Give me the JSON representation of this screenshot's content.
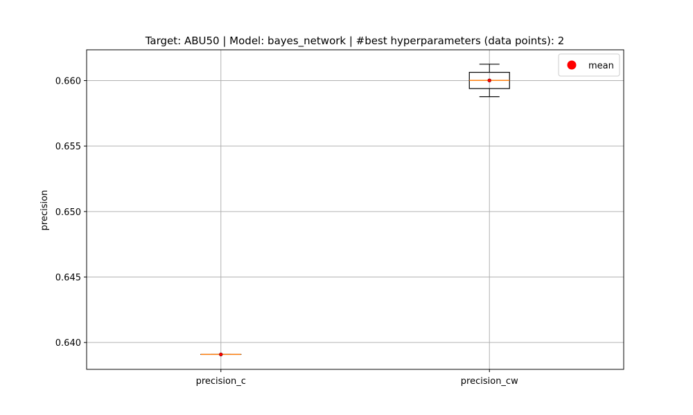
{
  "chart_data": {
    "type": "box",
    "title": "Target: ABU50 | Model: bayes_network | #best hyperparameters (data points): 2",
    "xlabel": "",
    "ylabel": "precision",
    "ylim": [
      0.63795,
      0.66235
    ],
    "yticks": [
      0.64,
      0.645,
      0.65,
      0.655,
      0.66
    ],
    "ytick_labels": [
      "0.640",
      "0.645",
      "0.650",
      "0.655",
      "0.660"
    ],
    "grid": true,
    "legend": {
      "position": "top-right",
      "entries": [
        {
          "label": "mean",
          "color": "#ff0000",
          "marker": "circle"
        }
      ]
    },
    "categories": [
      "precision_c",
      "precision_cw"
    ],
    "boxes": [
      {
        "name": "precision_c",
        "whisker_low": 0.63909,
        "q1": 0.63909,
        "median": 0.63909,
        "q3": 0.63909,
        "whisker_high": 0.63909,
        "mean": 0.63909
      },
      {
        "name": "precision_cw",
        "whisker_low": 0.65877,
        "q1": 0.65939,
        "median": 0.66001,
        "q3": 0.66063,
        "whisker_high": 0.66125,
        "mean": 0.66001
      }
    ]
  },
  "colors": {
    "box": "#000000",
    "median": "#ff7f0e",
    "mean": "#ff0000",
    "grid": "#b0b0b0"
  }
}
